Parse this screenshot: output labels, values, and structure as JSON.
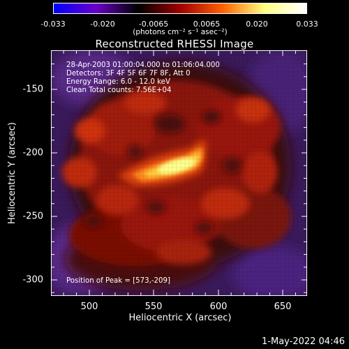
{
  "colorbar": {
    "ticks": [
      "-0.033",
      "-0.020",
      "-0.0065",
      "0.0065",
      "0.020",
      "0.033"
    ],
    "units": "(photons cm⁻² s⁻¹ asec⁻²)",
    "colors": [
      "#0000ff",
      "#6a00c8",
      "#000000",
      "#a00000",
      "#ff6000",
      "#ffff80",
      "#ffffff"
    ]
  },
  "title": "Reconstructed RHESSI Image",
  "annotations": {
    "time_range": "28-Apr-2003 01:00:04.000 to 01:06:04.000",
    "detectors": "Detectors: 3F 4F 5F 6F 7F 8F, Att 0",
    "energy": "Energy Range: 6.0 - 12.0 keV",
    "method": "Clean    Total counts: 7.56E+04",
    "peak": "Position of Peak = [573,-209]"
  },
  "axes": {
    "ylabel": "Heliocentric Y (arcsec)",
    "xlabel": "Heliocentric X (arcsec)",
    "yticks": [
      "-150",
      "-200",
      "-250",
      "-300"
    ],
    "xticks": [
      "500",
      "550",
      "600",
      "650"
    ],
    "xlim": [
      469,
      662
    ],
    "ylim": [
      -314,
      -123
    ]
  },
  "footer": {
    "date": "1-May-2022 04:46"
  }
}
